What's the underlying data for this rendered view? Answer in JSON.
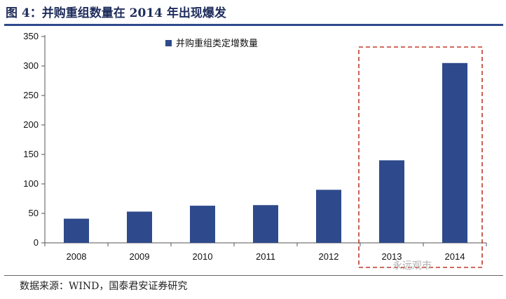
{
  "header": {
    "title": "图 4：并购重组数量在 2014 年出现爆发"
  },
  "footer": {
    "source": "数据来源：WIND，国泰君安证券研究",
    "watermark": "永远观市"
  },
  "colors": {
    "bar": "#2e4a8c",
    "highlight_box": "#c0392b",
    "title": "#1f2d5c"
  },
  "chart_data": {
    "type": "bar",
    "categories": [
      "2008",
      "2009",
      "2010",
      "2011",
      "2012",
      "2013",
      "2014"
    ],
    "series": [
      {
        "name": "并购重组类定增数量",
        "values": [
          41,
          53,
          63,
          64,
          90,
          140,
          305
        ]
      }
    ],
    "ylim": [
      0,
      350
    ],
    "yticks": [
      "0",
      "50",
      "100",
      "150",
      "200",
      "250",
      "300",
      "350"
    ],
    "grid": false,
    "legend": "top-center",
    "highlight": [
      "2013",
      "2014"
    ]
  }
}
